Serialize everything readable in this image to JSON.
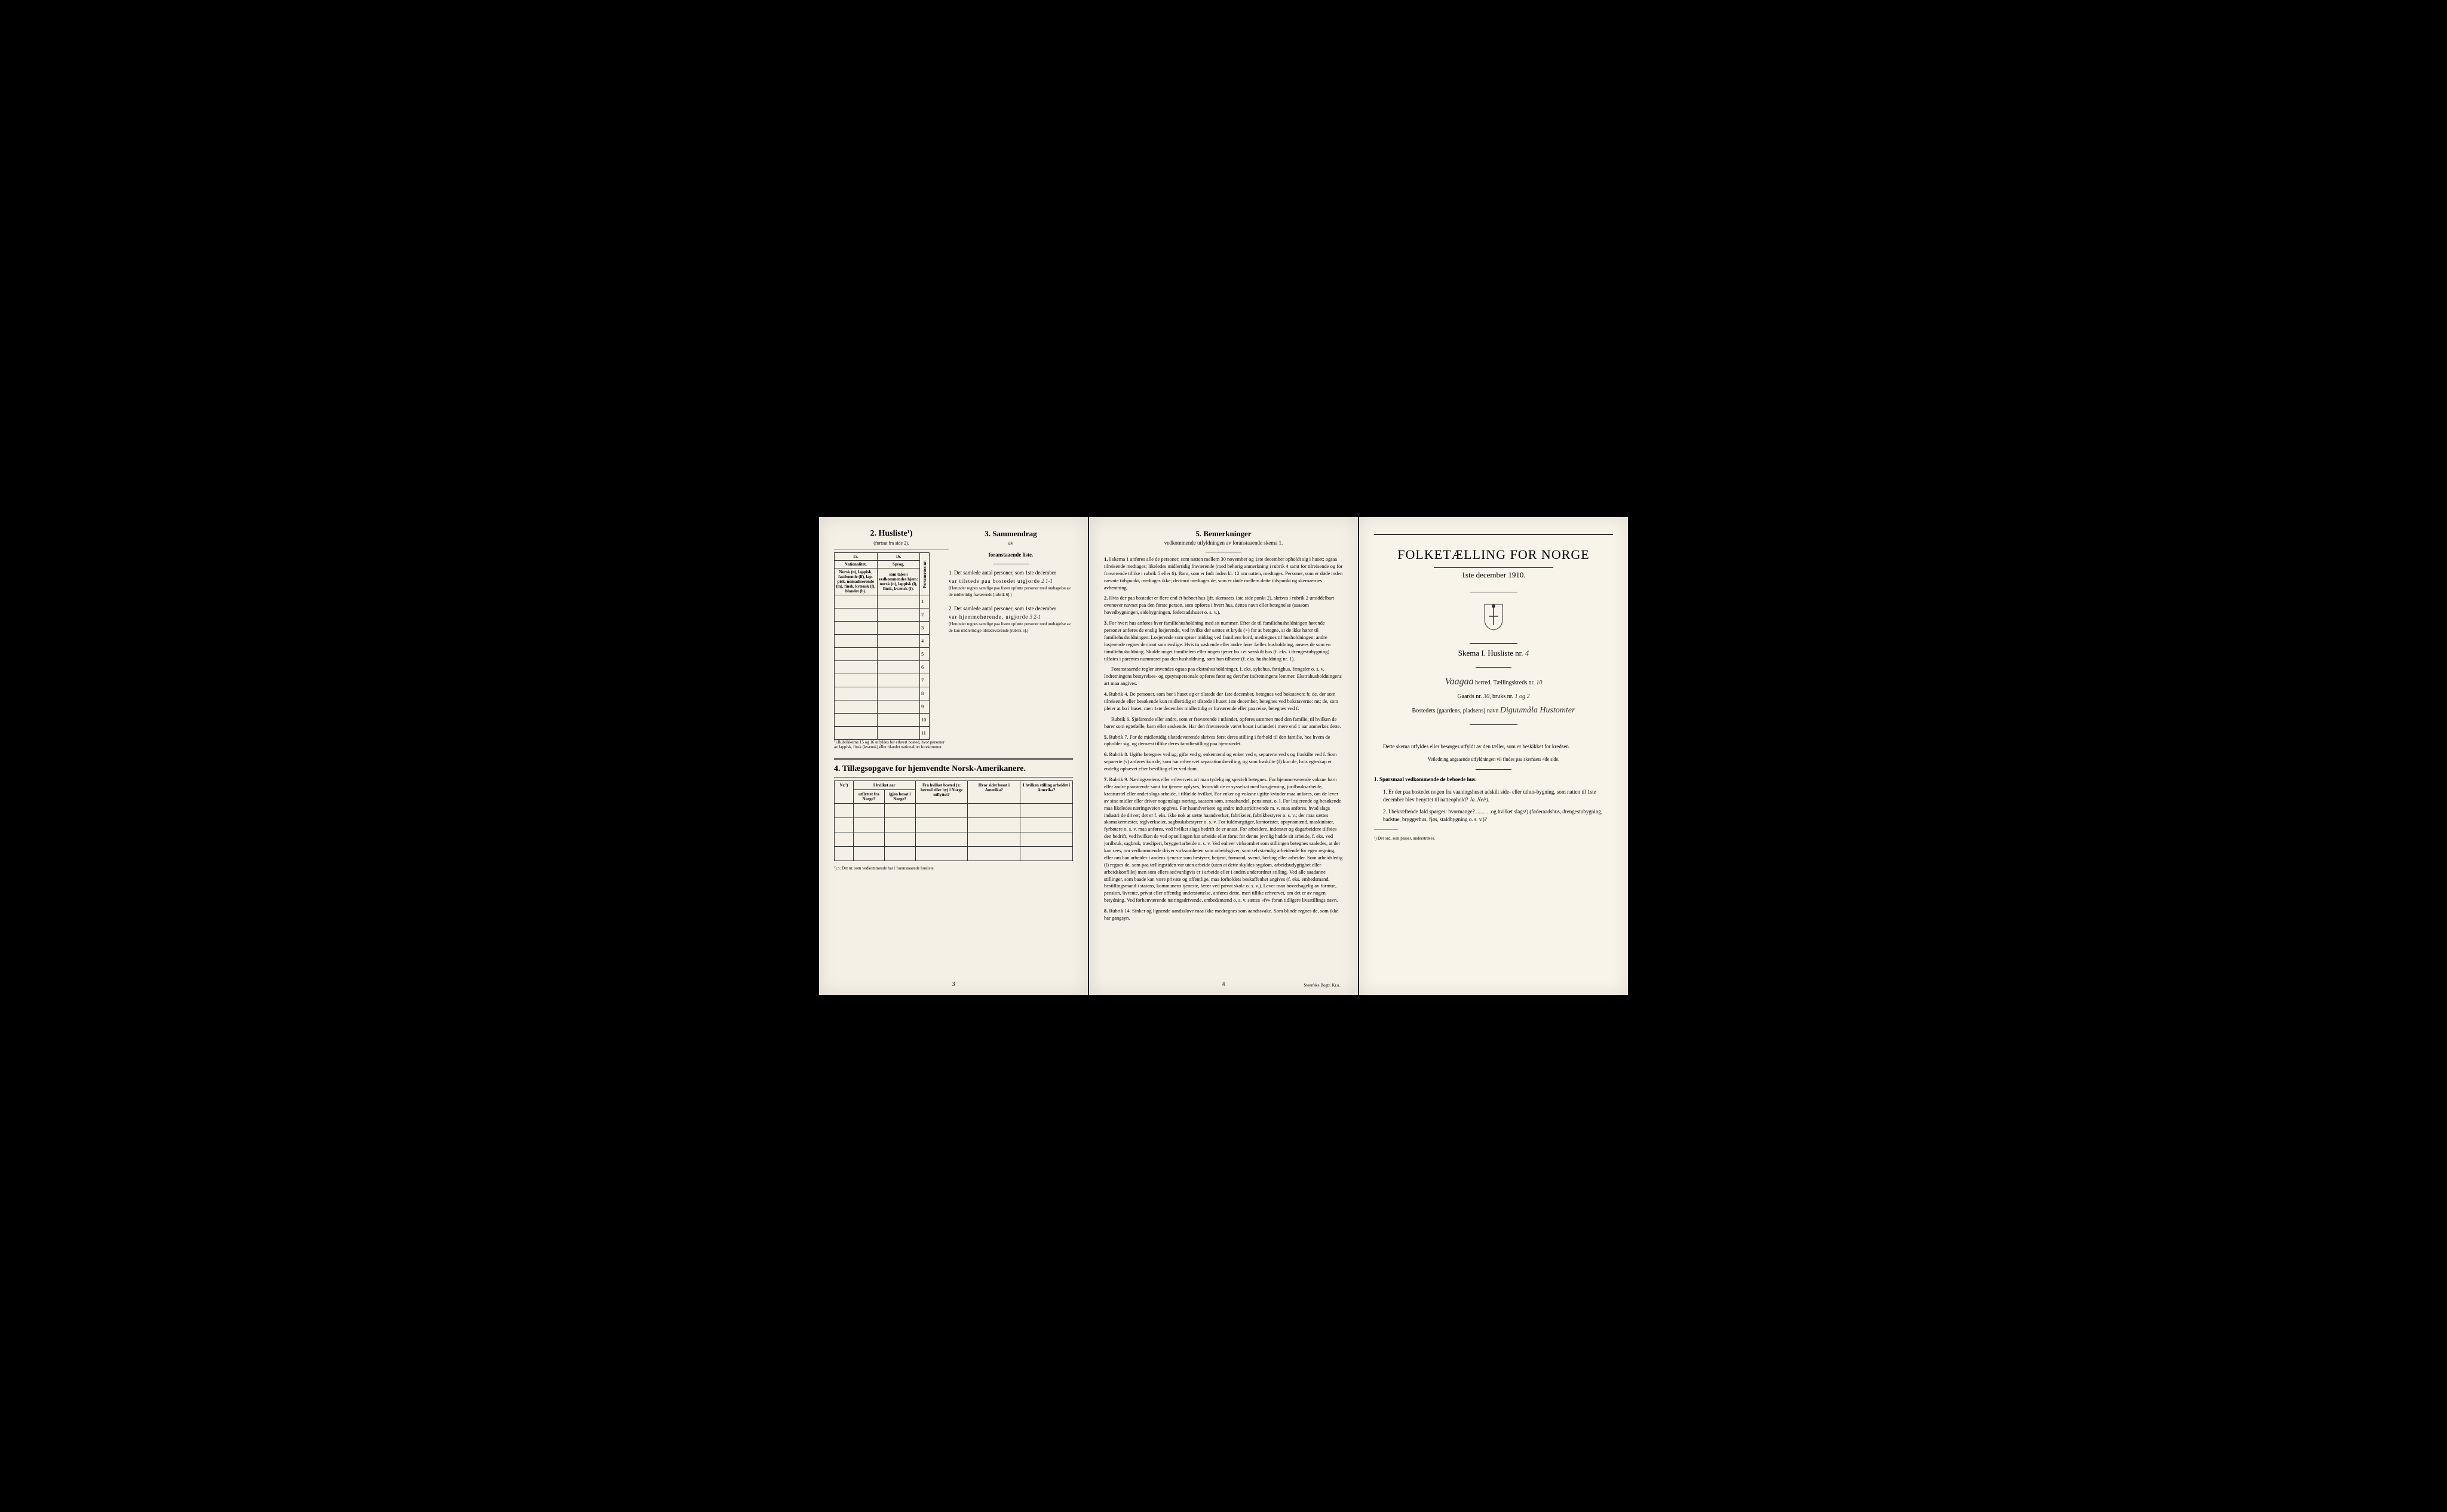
{
  "page1": {
    "husliste": {
      "title": "2. Husliste¹)",
      "subtitle": "(fortsat fra side 2).",
      "col15": "15.",
      "col16": "16.",
      "header15": "Nationalitet.",
      "header16": "Sprog,",
      "desc15": "Norsk (n), lappisk, fastboende (lf), lap-pisk, nomadiserende (ln), finsk, kvænsk (f), blandet (b).",
      "desc16": "som tales i vedkommendes hjem: norsk (n), lappisk (l), finsk, kvænsk (f).",
      "personCol": "Personernes nr.",
      "rows": [
        "1",
        "2",
        "3",
        "4",
        "5",
        "6",
        "7",
        "8",
        "9",
        "10",
        "11"
      ],
      "footnote": "¹) Rubrikkerne 15 og 16 utfyldes for ethvert bosted, hvor personer av lappisk, finsk (kvænsk) eller blandet nationalitet forekommer."
    },
    "sammendrag": {
      "title": "3. Sammendrag",
      "subtitle1": "av",
      "subtitle2": "foranstaaende liste.",
      "item1_label": "1. Det samlede antal personer, som 1ste december",
      "item1_text": "var tilstede paa bostedet utgjorde",
      "item1_value": "2 1-1",
      "item1_note": "(Herunder regnes samtlige paa listen opførte personer med undtagelse av de midlertidig fraværende [rubrik 6].)",
      "item2_label": "2. Det samlede antal personer, som 1ste december",
      "item2_text": "var hjemmehørende, utgjorde",
      "item2_value": "3 2-1",
      "item2_note": "(Herunder regnes samtlige paa listen opførte personer med undtagelse av de kun midlertidige tilstedeværende [rubrik 5].)"
    },
    "tillaeg": {
      "title": "4. Tillægsopgave for hjemvendte Norsk-Amerikanere.",
      "headers": {
        "nr": "Nr.²)",
        "col1a": "I hvilket aar",
        "col1b": "utflyttet fra Norge?",
        "col1c": "igjen bosat i Norge?",
        "col2": "Fra hvilket bosted (ɔ: herred eller by) i Norge utflyttet?",
        "col3": "Hvor sidst bosat i Amerika?",
        "col4": "I hvilken stilling arbeidet i Amerika?"
      },
      "footnote": "²) ɔ: Det nr. som vedkommende har i foranstaaende husliste."
    },
    "pageNum": "3"
  },
  "page2": {
    "title": "5. Bemerkninger",
    "subtitle": "vedkommende utfyldningen av foranstaaende skema 1.",
    "items": [
      {
        "num": "1.",
        "text": "I skema 1 anføres alle de personer, som natten mellem 30 november og 1ste december opholdt sig i huset; ogsaa tilreisende medtages; likeledes midlertidig fraværende (med behørig anmerkning i rubrik 4 samt for tilreisende og for fraværende tillike i rubrik 5 eller 6). Barn, som er født inden kl. 12 om natten, medtages. Personer, som er døde inden nævnte tidspunkt, medtages ikke; derimot medtages de, som er døde mellem dette tidspunkt og skemaernes avhentning."
      },
      {
        "num": "2.",
        "text": "Hvis der paa bostedet er flere end ét beboet hus (jfr. skemaets 1ste side punkt 2), skrives i rubrik 2 umiddelbart ovenover navnet paa den første person, som opføres i hvert hus, dettes navn eller betegnelse (saasom hovedbygningen, sidebygningen, føderaadshuset o. s. v.)."
      },
      {
        "num": "3.",
        "text": "For hvert hus anføres hver familiehusholdning med sit nummer. Efter de til familiehusholdningen hørende personer anføres de enslig losjerende, ved hvilke der sættes et kryds (×) for at betegne, at de ikke hører til familiehusholdningen. Losjerende som spiser middag ved familiens bord, medregnes til husholdningen; andre losjerende regnes derimot som enslige. Hvis to søskende eller andre fører fælles husholdning, ansees de som en familiehusholdning. Skulde noget familielem eller nogen tjener bo i et særskilt hus (f. eks. i drengestubygning) tilføies i parentes nummeret paa den husholdning, som han tilhører (f. eks. husholdning nr. 1).",
        "extra": "Foranstaaende regler anvendes ogsaa paa ekstrahusholdninger, f. eks. sykehus, fattighus, fængsler o. s. v. Indretningens bestyrelses- og opsynspersonale opføres først og derefter indretningens lemmer. Ekstrahusholdningens art maa angives."
      },
      {
        "num": "4.",
        "text": "Rubrik 4. De personer, som bor i huset og er tilstede der 1ste december, betegnes ved bokstaven: b; de, der som tilreisende eller besøkende kun midlertidig er tilstede i huset 1ste december, betegnes ved bokstaverne: mt; de, som pleier at bo i huset, men 1ste december midlertidig er fraværende eller paa reise, betegnes ved f.",
        "extra": "Rubrik 6. Sjøfarende eller andre, som er fraværende i utlandet, opføres sammen med den familie, til hvilken de hører som egtefælle, barn eller søskende. Har den fraværende været bosat i utlandet i mere end 1 aar anmerkes dette."
      },
      {
        "num": "5.",
        "text": "Rubrik 7. For de midlertidig tilstedeværende skrives først deres stilling i forhold til den familie, hos hvem de opholder sig, og dernæst tillike deres familiestilling paa hjemstedet."
      },
      {
        "num": "6.",
        "text": "Rubrik 8. Ugifte betegnes ved ug, gifte ved g, enkemænd og enker ved e, separerte ved s og fraskilte ved f. Som separerte (s) anføres kun de, som har erhvervet separationsbeviling, og som fraskilte (f) kun de, hvis egteskap er endelig ophævet efter bevilling eller ved dom."
      },
      {
        "num": "7.",
        "text": "Rubrik 9. Næringsveiens eller erhvervets art maa tydelig og specielt betegnes. For hjemmeværende voksne barn eller andre paarørende samt for tjenere oplyses, hvorvidt de er sysselsat med husgjerning, jordbruksarbeide, kreaturstel eller andet slags arbeide, i tilfælde hvilket. For enker og voksne ugifte kvinder maa anføres, om de lever av sine midler eller driver nogenslags næring, saasom søm, smaahandel, pensionat, o. l. For losjerende og besøkende maa likeledes næringsveien opgives. For haandverkere og andre industridrivende m. v. maa anføres, hvad slags industri de driver; det er f. eks. ikke nok at sætte haandverker, fabrikeier, fabrikbestyrer o. s. v.; der maa sættes skomakermester, teglverkseier, sagbruksbestyrer o. s. v. For fuldmægtiger, kontorister, opsynsmænd, maskinister, fyrbøtere o. s. v. maa anføres, ved hvilket slags bedrift de er ansat. For arbeidere, inderster og dagarbeidere tilføies den bedrift, ved hvilken de ved optællingen har arbeide eller forut for denne jevnlig hadde sit arbeide, f. eks. ved jordbruk, sagbruk, træsliperi, bryggeriarbeide o. s. v. Ved enhver virksomhet som stillingen betegnes saaledes, at det kan sees, om vedkommende driver virksomheten som arbeidsgiver, som selvstændig arbeidende for egen regning, eller om han arbeider i andens tjeneste som bestyrer, betjent, formand, svend, lærling eller arbeider. Som arbeidsledig (l) regnes de, som paa tællingstiden var uten arbeide (uten at dette skyldes sygdom, arbeidsudygtighet eller arbeidskonflikt) men som ellers sedvanligvis er i arbeide eller i anden underordnet stilling. Ved alle saadanne stillinger, som baade kan være private og offentlige, maa forholdets beskaffenhet angives (f. eks. embedsmand, bestillingsmand i statens, kommunens tjeneste, lærer ved privat skole o. s. v.). Lever man hovedsagelig av formue, pension, livrente, privat eller offentlig understøttelse, anføres dette, men tillike erhvervet, om det er av nogen betydning. Ved forhenværende næringsdrivende, embedsmænd o. s. v. sættes «fv» foran tidligere livsstillings navn."
      },
      {
        "num": "8.",
        "text": "Rubrik 14. Sinker og lignende aandsslove maa ikke medregnes som aandssvake. Som blinde regnes de, som ikke har gangsyn."
      }
    ],
    "pageNum": "4",
    "printer": "Steen'ske Bogtr. Kr.a."
  },
  "page3": {
    "title": "FOLKETÆLLING FOR NORGE",
    "date": "1ste december 1910.",
    "skema": "Skema I. Husliste nr.",
    "skemaValue": "4",
    "herredLabel": "herred. Tællingskreds nr.",
    "herredValue": "Vaagaa",
    "kredsValue": "10",
    "gaardLabel": "Gaards nr.",
    "gaardValue": "30",
    "bruksLabel": "bruks nr.",
    "bruksValue": "1 og 2",
    "bostedLabel": "Bostedets (gaardens, pladsens) navn",
    "bostedValue": "Diguumåla Hustomter",
    "instructions": {
      "intro": "Dette skema utfyldes eller besørges utfyldt av den tæller, som er beskikket for kredsen.",
      "note": "Veiledning angaaende utfyldningen vil findes paa skemaets 4de side.",
      "section1": "1. Spørsmaal vedkommende de beboede hus:",
      "q1": "1. Er der paa bostedet nogen fra vaaningshuset adskilt side- eller uthus-bygning, som natten til 1ste december blev benyttet til natteophold?",
      "q1_answer": "Ja. Nei¹).",
      "q2": "2. I bekræftende fald spørges: hvormange?............og hvilket slags¹) (føderaadshus, drengestubygning, badstue, bryggerhus, fjøs, staldbygning o. s. v.)?",
      "footnote": "¹) Det ord, som passer, understrekes."
    }
  }
}
